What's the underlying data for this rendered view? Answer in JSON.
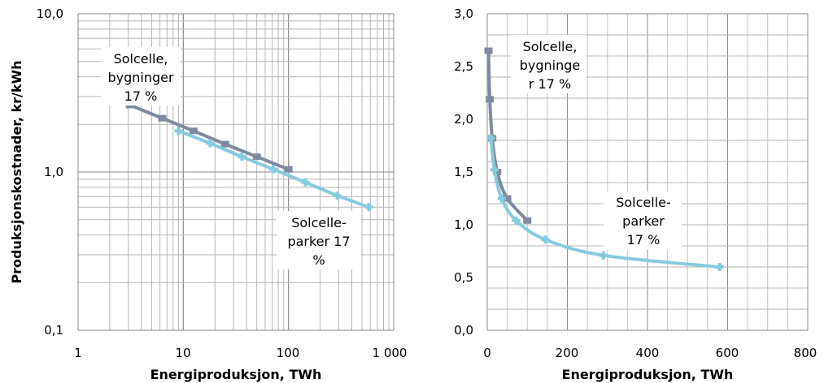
{
  "chart_data": [
    {
      "type": "line",
      "x_scale": "log",
      "y_scale": "log",
      "xlabel": "Energiproduksjon, TWh",
      "ylabel": "Produksjonskostnader, kr/kWh",
      "xlim": [
        1,
        1000
      ],
      "ylim": [
        0.1,
        10
      ],
      "x_ticks": [
        "1",
        "10",
        "100",
        "1 000"
      ],
      "y_ticks": [
        "0,1",
        "1,0",
        "10,0"
      ],
      "grid": true,
      "series": [
        {
          "key": "bygninger",
          "color": "#7f8aa0",
          "x": [
            3.1,
            6.3,
            12.5,
            25,
            50,
            100
          ],
          "y": [
            2.65,
            2.19,
            1.82,
            1.5,
            1.25,
            1.04
          ]
        },
        {
          "key": "parker",
          "color": "#86cade",
          "x": [
            9,
            18,
            36,
            72,
            145,
            290,
            580
          ],
          "y": [
            1.82,
            1.52,
            1.25,
            1.04,
            0.86,
            0.71,
            0.6
          ]
        }
      ],
      "annotations": [
        {
          "series": "bygninger",
          "lines": [
            "Solcelle,",
            "bygninger",
            "17 %"
          ]
        },
        {
          "series": "parker",
          "lines": [
            "Solcelle-",
            "parker 17",
            "%"
          ]
        }
      ]
    },
    {
      "type": "line",
      "x_scale": "linear",
      "y_scale": "linear",
      "xlabel": "Energiproduksjon, TWh",
      "ylabel": "",
      "xlim": [
        0,
        800
      ],
      "ylim": [
        0,
        3.0
      ],
      "x_ticks": [
        "0",
        "200",
        "400",
        "600",
        "800"
      ],
      "y_ticks": [
        "0,0",
        "0,5",
        "1,0",
        "1,5",
        "2,0",
        "2,5",
        "3,0"
      ],
      "grid": true,
      "series": [
        {
          "key": "bygninger",
          "color": "#7f8aa0",
          "x": [
            3.1,
            6.3,
            12.5,
            25,
            50,
            100
          ],
          "y": [
            2.65,
            2.19,
            1.82,
            1.5,
            1.25,
            1.04
          ]
        },
        {
          "key": "parker",
          "color": "#86cade",
          "x": [
            9,
            18,
            36,
            72,
            145,
            290,
            580
          ],
          "y": [
            1.82,
            1.52,
            1.25,
            1.04,
            0.86,
            0.71,
            0.6
          ]
        }
      ],
      "annotations": [
        {
          "series": "bygninger",
          "lines": [
            "Solcelle,",
            "bygninge",
            "r 17 %"
          ]
        },
        {
          "series": "parker",
          "lines": [
            "Solcelle-",
            "parker",
            "17 %"
          ]
        }
      ]
    }
  ]
}
